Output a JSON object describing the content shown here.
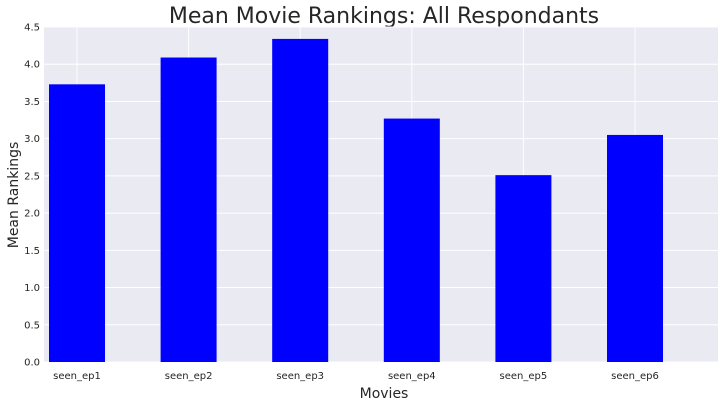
{
  "chart_data": {
    "type": "bar",
    "title": "Mean Movie Rankings: All Respondants",
    "xlabel": "Movies",
    "ylabel": "Mean Rankings",
    "categories": [
      "seen_ep1",
      "seen_ep2",
      "seen_ep3",
      "seen_ep4",
      "seen_ep5",
      "seen_ep6"
    ],
    "values": [
      3.73,
      4.09,
      4.34,
      3.27,
      2.51,
      3.05
    ],
    "ylim": [
      0,
      4.5
    ],
    "yticks": [
      "0.0",
      "0.5",
      "1.0",
      "1.5",
      "2.0",
      "2.5",
      "3.0",
      "3.5",
      "4.0",
      "4.5"
    ],
    "grid": true,
    "legend": "none",
    "colors": {
      "bar": "#0000ff",
      "plot_background": "#eaeaf2",
      "grid": "#ffffff",
      "text": "#262626"
    }
  }
}
